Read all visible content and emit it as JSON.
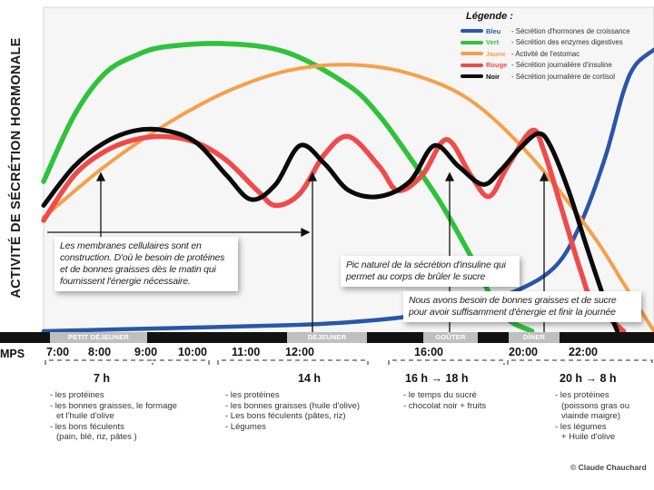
{
  "y_axis_title": "ACTIVITÉ DE SÉCRÉTION HORMONALE",
  "x_axis_label": "MPS",
  "legend": {
    "title": "Légende :",
    "items": [
      {
        "color_name": "Bleu",
        "description": "- Sécrétion d'hormones de croissance",
        "color": "#2b56a8"
      },
      {
        "color_name": "Vert",
        "description": "- Sécrétion des enzymes digestives",
        "color": "#2fc23b"
      },
      {
        "color_name": "Jaune",
        "description": "- Activité de l'estomac",
        "color": "#f5a04a"
      },
      {
        "color_name": "Rouge",
        "description": "- Sécrétion journalière d'insuline",
        "color": "#ef4b4b"
      },
      {
        "color_name": "Noir",
        "description": "- Sécrétion journalière de cortisol",
        "color": "#0a0a0a"
      }
    ]
  },
  "callouts": {
    "membranes": "Les membranes cellulaires sont en construction. D'où le besoin de protéines et de bonnes graisses dès le matin qui fournissent l'énergie nécessaire.",
    "insuline": "Pic naturel de la sécrétion d'insuline qui permet au corps de brûler le sucre",
    "graisses": "Nous avons besoin de bonnes graisses et de sucre pour avoir suffisamment d'énergie et finir la journée"
  },
  "meals": [
    "PETIT DÉJEUNER",
    "DÉJEUNER",
    "GOÛTER",
    "DÎNER"
  ],
  "times": [
    "7:00",
    "8:00",
    "9:00",
    "10:00",
    "11:00",
    "12:00",
    "16:00",
    "20:00",
    "22:00"
  ],
  "periods": [
    {
      "label": "7 h",
      "foods": [
        "- les protéines",
        "- les bonnes graisses, le formage",
        "  et l'huile d'olive",
        "- les bons féculents",
        "  (pain, blé, riz, pâtes )"
      ]
    },
    {
      "label": "14 h",
      "foods": [
        "- les protéines",
        "- les bonnes graisses (huile d'olive)",
        "- Les bons féculents (pâtes, riz)",
        "- Légumes"
      ]
    },
    {
      "label": "16 h → 18 h",
      "foods": [
        "- le temps du sucré",
        "- chocolat noir + fruits"
      ]
    },
    {
      "label": "20 h → 8 h",
      "foods": [
        "- les protéines",
        "  (poissons gras ou",
        "  viainde maigre)",
        "- les légumes",
        "  + Huile d'olive"
      ]
    }
  ],
  "credit": "© Claude Chauchard",
  "chart_data": {
    "type": "line",
    "title": "",
    "xlabel": "MPS",
    "ylabel": "ACTIVITÉ DE SÉCRÉTION HORMONALE",
    "xlim": [
      0,
      100
    ],
    "ylim": [
      0,
      100
    ],
    "series": [
      {
        "name": "Bleu",
        "color": "#2b56a8",
        "x": [
          0,
          20,
          40,
          50,
          60,
          70,
          78,
          84,
          88,
          92,
          95,
          97,
          100
        ],
        "y": [
          0,
          1,
          2,
          3,
          5,
          9,
          14,
          22,
          36,
          58,
          80,
          89,
          94
        ]
      },
      {
        "name": "Vert",
        "color": "#2fc23b",
        "x": [
          0,
          5,
          10,
          15,
          20,
          30,
          40,
          50,
          55,
          60,
          65,
          70,
          75,
          80
        ],
        "y": [
          50,
          72,
          86,
          92,
          95,
          96,
          93,
          82,
          72,
          58,
          43,
          25,
          6,
          0
        ]
      },
      {
        "name": "Jaune",
        "color": "#f5a04a",
        "x": [
          0,
          10,
          20,
          30,
          40,
          50,
          60,
          70,
          80,
          90,
          95,
          100
        ],
        "y": [
          38,
          55,
          69,
          80,
          87,
          89,
          86,
          77,
          58,
          32,
          16,
          0
        ]
      },
      {
        "name": "Rouge",
        "color": "#ef4b4b",
        "x": [
          0,
          5,
          10,
          15,
          20,
          25,
          30,
          35,
          38,
          42,
          46,
          50,
          55,
          58,
          62,
          66,
          70,
          73,
          76,
          80,
          82,
          85,
          88,
          90,
          95
        ],
        "y": [
          37,
          52,
          60,
          64,
          65,
          63,
          57,
          47,
          42,
          46,
          59,
          65,
          55,
          47,
          52,
          64,
          52,
          45,
          55,
          67,
          60,
          40,
          20,
          10,
          0
        ]
      },
      {
        "name": "Noir",
        "color": "#0a0a0a",
        "x": [
          0,
          5,
          10,
          15,
          20,
          25,
          30,
          34,
          38,
          42,
          46,
          50,
          55,
          60,
          64,
          68,
          72,
          75,
          78,
          81,
          83,
          86,
          89,
          92,
          94
        ],
        "y": [
          42,
          55,
          63,
          67,
          67,
          63,
          52,
          44,
          49,
          62,
          56,
          47,
          45,
          50,
          62,
          55,
          49,
          54,
          61,
          66,
          62,
          47,
          28,
          10,
          0
        ]
      }
    ]
  }
}
